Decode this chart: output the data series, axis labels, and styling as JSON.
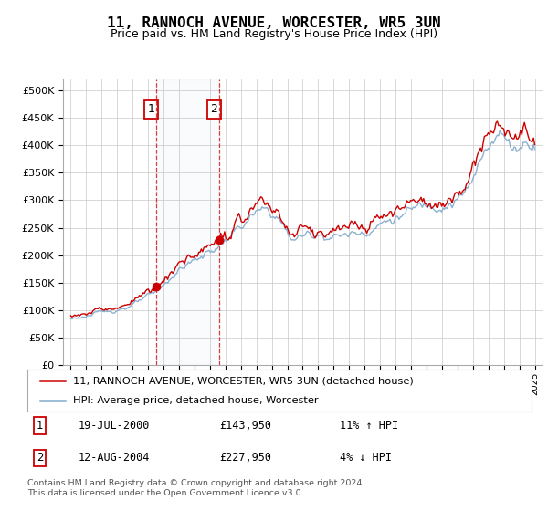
{
  "title": "11, RANNOCH AVENUE, WORCESTER, WR5 3UN",
  "subtitle": "Price paid vs. HM Land Registry's House Price Index (HPI)",
  "background_color": "#ffffff",
  "plot_bg_color": "#ffffff",
  "grid_color": "#cccccc",
  "red_line_color": "#cc0000",
  "blue_line_color": "#7faacc",
  "sale1_year": 2000.54,
  "sale1_price": 143950,
  "sale1_date": "19-JUL-2000",
  "sale1_hpi_change": "11% ↑ HPI",
  "sale2_year": 2004.62,
  "sale2_price": 227950,
  "sale2_date": "12-AUG-2004",
  "sale2_hpi_change": "4% ↓ HPI",
  "legend_red": "11, RANNOCH AVENUE, WORCESTER, WR5 3UN (detached house)",
  "legend_blue": "HPI: Average price, detached house, Worcester",
  "footnote": "Contains HM Land Registry data © Crown copyright and database right 2024.\nThis data is licensed under the Open Government Licence v3.0.",
  "ylim_max": 520000,
  "ylim_min": 0,
  "xlim_min": 1994.5,
  "xlim_max": 2025.5
}
